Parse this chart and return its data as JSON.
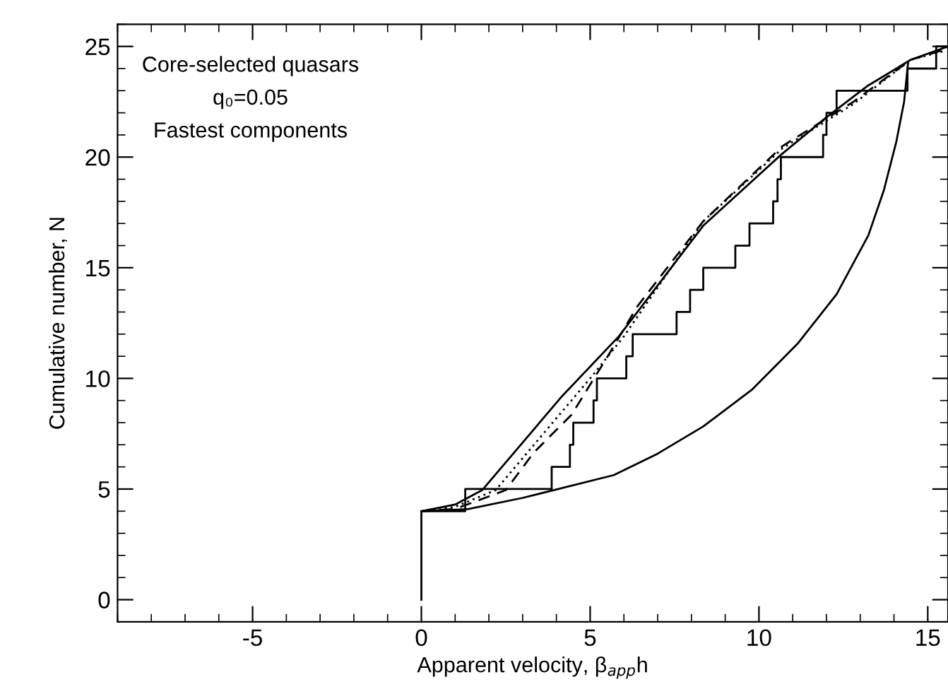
{
  "chart_data": {
    "type": "line",
    "xlabel": "Apparent velocity, β$_{app}$h",
    "ylabel": "Cumulative number, N",
    "annotations": [
      "Core-selected quasars",
      "q₀=0.05",
      "Fastest components"
    ],
    "xlim": [
      -9,
      15.6
    ],
    "ylim": [
      -1,
      26
    ],
    "xticks": [
      {
        "value": -5,
        "label": "-5"
      },
      0,
      5,
      10,
      15
    ],
    "yticks": [
      0,
      5,
      10,
      15,
      20,
      25
    ],
    "grid": false,
    "legend": false,
    "marker": "none",
    "series": [
      {
        "type": "step",
        "color": "#000000",
        "line_style": "solid",
        "x": [
          0,
          0,
          1.3,
          3.86,
          4.4,
          4.5,
          5.1,
          5.2,
          6.07,
          6.26,
          7.56,
          7.96,
          8.35,
          9.3,
          9.72,
          10.42,
          10.55,
          10.65,
          11.9,
          12.0,
          12.3,
          14.4,
          15.25,
          15.6
        ],
        "values": [
          0,
          4,
          5,
          6,
          7,
          8,
          9,
          10,
          11,
          12,
          13,
          14,
          15,
          16,
          17,
          18,
          19,
          20,
          21,
          22,
          23,
          24,
          25,
          25
        ]
      },
      {
        "color": "#000000",
        "line_style": "solid",
        "x": [
          0,
          1.38,
          3,
          5.7,
          7,
          8.35,
          9.8,
          11.14,
          12.3,
          13.24,
          13.7,
          14.07,
          14.3,
          14.42
        ],
        "values": [
          4,
          4.09,
          4.6,
          5.63,
          6.6,
          7.83,
          9.5,
          11.56,
          13.8,
          16.46,
          18.5,
          20.7,
          22.5,
          24.3
        ]
      },
      {
        "color": "#000000",
        "line_style": "solid",
        "x": [
          0,
          1,
          1.8,
          4.17,
          5.85,
          8.35,
          10.65,
          12.0,
          13.2,
          14.5,
          15.6
        ],
        "values": [
          4,
          4.3,
          4.95,
          9.2,
          11.9,
          16.9,
          20.1,
          21.8,
          23.2,
          24.4,
          25
        ]
      },
      {
        "color": "#000000",
        "line_style": "dashed",
        "x": [
          0,
          1,
          2.5,
          3.33,
          4.45,
          5.56,
          6.4,
          8.35,
          10.7,
          12.8,
          14.5,
          15.6
        ],
        "values": [
          4,
          4.1,
          4.95,
          6.65,
          8.36,
          11.1,
          13.26,
          17.1,
          20.5,
          22.5,
          24.4,
          24.9
        ]
      },
      {
        "color": "#000000",
        "line_style": "dotted",
        "x": [
          0,
          1,
          2.2,
          3.5,
          5.0,
          6.0,
          8.35,
          10.7,
          12.8,
          14.5,
          15.5
        ],
        "values": [
          4,
          4.2,
          4.95,
          7.3,
          10.0,
          11.9,
          17.1,
          20.4,
          22.4,
          24.4,
          24.8
        ]
      }
    ]
  }
}
